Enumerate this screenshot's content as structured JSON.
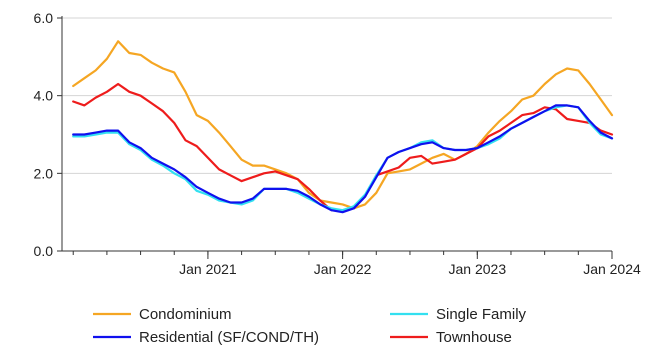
{
  "chart_data": {
    "type": "line",
    "title": "",
    "xlabel": "",
    "ylabel": "",
    "ylim": [
      0,
      6
    ],
    "yticks": [
      "0.0",
      "2.0",
      "4.0",
      "6.0"
    ],
    "xticks": [
      {
        "label": "Jan 2021",
        "x": "2021-01"
      },
      {
        "label": "Jan 2022",
        "x": "2022-01"
      },
      {
        "label": "Jan 2023",
        "x": "2023-01"
      },
      {
        "label": "Jan 2024",
        "x": "2024-01"
      }
    ],
    "x_range": [
      "2020-01",
      "2024-01"
    ],
    "grid": true,
    "legend_position": "bottom",
    "x": [
      "2020-01",
      "2020-02",
      "2020-03",
      "2020-04",
      "2020-05",
      "2020-06",
      "2020-07",
      "2020-08",
      "2020-09",
      "2020-10",
      "2020-11",
      "2020-12",
      "2021-01",
      "2021-02",
      "2021-03",
      "2021-04",
      "2021-05",
      "2021-06",
      "2021-07",
      "2021-08",
      "2021-09",
      "2021-10",
      "2021-11",
      "2021-12",
      "2022-01",
      "2022-02",
      "2022-03",
      "2022-04",
      "2022-05",
      "2022-06",
      "2022-07",
      "2022-08",
      "2022-09",
      "2022-10",
      "2022-11",
      "2022-12",
      "2023-01",
      "2023-02",
      "2023-03",
      "2023-04",
      "2023-05",
      "2023-06",
      "2023-07",
      "2023-08",
      "2023-09",
      "2023-10",
      "2023-11",
      "2023-12",
      "2024-01"
    ],
    "series": [
      {
        "name": "Condominium",
        "color": "#f5a623",
        "values": [
          4.25,
          4.45,
          4.65,
          4.95,
          5.4,
          5.1,
          5.05,
          4.85,
          4.7,
          4.6,
          4.1,
          3.5,
          3.35,
          3.05,
          2.7,
          2.35,
          2.2,
          2.2,
          2.1,
          2.0,
          1.85,
          1.5,
          1.3,
          1.25,
          1.2,
          1.1,
          1.2,
          1.5,
          2.0,
          2.05,
          2.1,
          2.25,
          2.4,
          2.5,
          2.35,
          2.5,
          2.7,
          3.05,
          3.35,
          3.6,
          3.9,
          4.0,
          4.3,
          4.55,
          4.7,
          4.65,
          4.3,
          3.9,
          3.5
        ]
      },
      {
        "name": "Single Family",
        "color": "#33e0f0",
        "values": [
          2.95,
          2.95,
          3.0,
          3.05,
          3.05,
          2.75,
          2.6,
          2.35,
          2.2,
          2.0,
          1.85,
          1.55,
          1.45,
          1.3,
          1.25,
          1.2,
          1.3,
          1.6,
          1.6,
          1.6,
          1.5,
          1.35,
          1.2,
          1.1,
          1.05,
          1.15,
          1.45,
          1.95,
          2.4,
          2.55,
          2.65,
          2.8,
          2.85,
          2.65,
          2.6,
          2.6,
          2.65,
          2.75,
          2.9,
          3.15,
          3.3,
          3.45,
          3.6,
          3.7,
          3.75,
          3.7,
          3.3,
          3.0,
          2.9
        ]
      },
      {
        "name": "Residential (SF/COND/TH)",
        "color": "#1010ee",
        "values": [
          3.0,
          3.0,
          3.05,
          3.1,
          3.1,
          2.8,
          2.65,
          2.4,
          2.25,
          2.1,
          1.9,
          1.65,
          1.5,
          1.35,
          1.25,
          1.25,
          1.35,
          1.6,
          1.6,
          1.6,
          1.55,
          1.4,
          1.2,
          1.05,
          1.0,
          1.1,
          1.4,
          1.9,
          2.4,
          2.55,
          2.65,
          2.75,
          2.8,
          2.65,
          2.6,
          2.6,
          2.65,
          2.8,
          2.95,
          3.15,
          3.3,
          3.45,
          3.6,
          3.75,
          3.75,
          3.7,
          3.35,
          3.05,
          2.9
        ]
      },
      {
        "name": "Townhouse",
        "color": "#ee1c1c",
        "values": [
          3.85,
          3.75,
          3.95,
          4.1,
          4.3,
          4.1,
          4.0,
          3.8,
          3.6,
          3.3,
          2.85,
          2.7,
          2.4,
          2.1,
          1.95,
          1.8,
          1.9,
          2.0,
          2.05,
          1.95,
          1.85,
          1.6,
          1.3,
          1.05,
          1.05,
          1.1,
          1.4,
          1.95,
          2.05,
          2.15,
          2.4,
          2.45,
          2.25,
          2.3,
          2.35,
          2.5,
          2.65,
          2.95,
          3.1,
          3.3,
          3.5,
          3.55,
          3.7,
          3.65,
          3.4,
          3.35,
          3.3,
          3.1,
          3.0
        ]
      }
    ]
  }
}
